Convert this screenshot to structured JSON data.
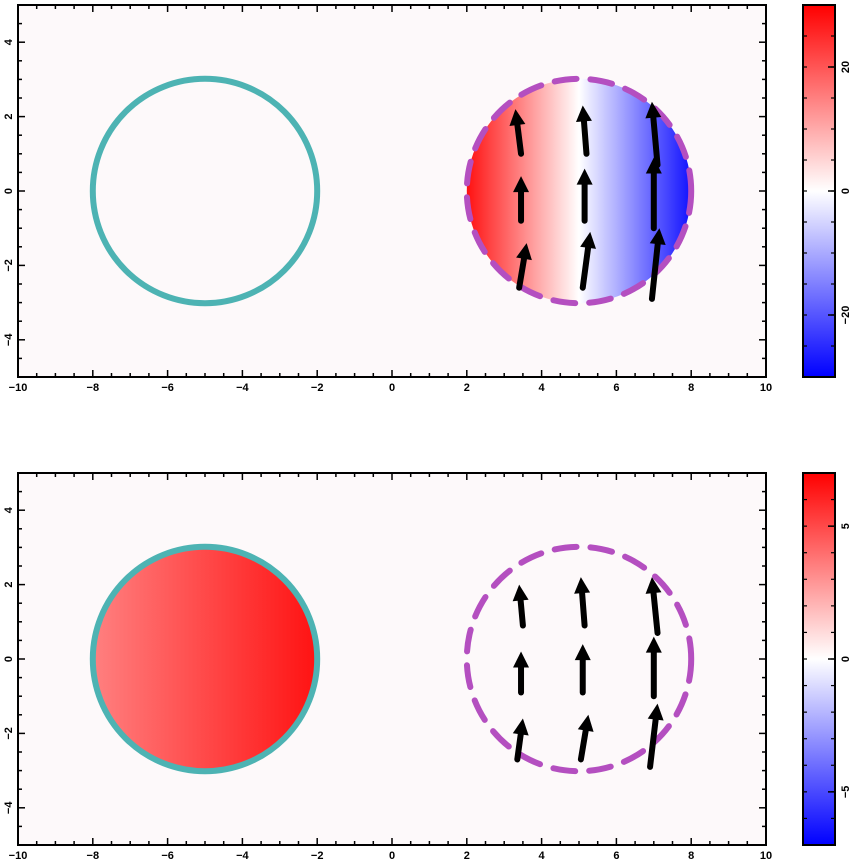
{
  "chart_data": [
    {
      "type": "heatmap",
      "panel": "top",
      "title": "",
      "xlabel": "",
      "ylabel": "",
      "xlim": [
        -10,
        10
      ],
      "ylim": [
        -5,
        5
      ],
      "x_ticks": [
        "−10",
        "−8",
        "−6",
        "−4",
        "−2",
        "0",
        "2",
        "4",
        "6",
        "8",
        "10"
      ],
      "y_ticks": [
        "−4",
        "−2",
        "0",
        "2",
        "4"
      ],
      "left_circle": {
        "cx": -5,
        "cy": 0,
        "r": 3,
        "style": "solid",
        "color": "#4db3b3",
        "filled": false
      },
      "right_circle": {
        "cx": 5,
        "cy": 0,
        "r": 3,
        "style": "dashed",
        "color": "#b44fc0",
        "filled": true,
        "field": {
          "kind": "diverging_x",
          "left_value": 28,
          "right_value": -28
        }
      },
      "arrows": [
        {
          "x": 3.4,
          "y": -2.6,
          "dx": 0.2,
          "dy": 1.2
        },
        {
          "x": 3.45,
          "y": -0.8,
          "dx": 0.0,
          "dy": 1.2
        },
        {
          "x": 3.45,
          "y": 1.0,
          "dx": -0.15,
          "dy": 1.2
        },
        {
          "x": 5.1,
          "y": -2.6,
          "dx": 0.2,
          "dy": 1.5
        },
        {
          "x": 5.15,
          "y": -0.8,
          "dx": 0.0,
          "dy": 1.4
        },
        {
          "x": 5.2,
          "y": 1.0,
          "dx": -0.1,
          "dy": 1.3
        },
        {
          "x": 6.95,
          "y": -2.9,
          "dx": 0.2,
          "dy": 1.9
        },
        {
          "x": 7.0,
          "y": -1.0,
          "dx": 0.0,
          "dy": 1.9
        },
        {
          "x": 7.1,
          "y": 0.7,
          "dx": -0.15,
          "dy": 1.7
        }
      ],
      "colorbar": {
        "min": -30,
        "max": 30,
        "ticks": [
          {
            "value": 20,
            "label": "20"
          },
          {
            "value": 0,
            "label": "0"
          },
          {
            "value": -20,
            "label": "−20"
          }
        ]
      }
    },
    {
      "type": "heatmap",
      "panel": "bottom",
      "title": "",
      "xlabel": "",
      "ylabel": "",
      "xlim": [
        -10,
        10
      ],
      "ylim": [
        -5,
        5
      ],
      "x_ticks": [
        "−10",
        "−8",
        "−6",
        "−4",
        "−2",
        "0",
        "2",
        "4",
        "6",
        "8",
        "10"
      ],
      "y_ticks": [
        "−4",
        "−2",
        "0",
        "2",
        "4"
      ],
      "left_circle": {
        "cx": -5,
        "cy": 0,
        "r": 3,
        "style": "solid",
        "color": "#4db3b3",
        "filled": true,
        "field": {
          "kind": "linear_x",
          "left_value": 3.5,
          "right_value": 6.5
        }
      },
      "right_circle": {
        "cx": 5,
        "cy": 0,
        "r": 3,
        "style": "dashed",
        "color": "#b44fc0",
        "filled": false
      },
      "arrows": [
        {
          "x": 3.35,
          "y": -2.7,
          "dx": 0.15,
          "dy": 1.1
        },
        {
          "x": 3.45,
          "y": -0.9,
          "dx": 0.0,
          "dy": 1.1
        },
        {
          "x": 3.5,
          "y": 0.9,
          "dx": -0.1,
          "dy": 1.1
        },
        {
          "x": 5.05,
          "y": -2.7,
          "dx": 0.2,
          "dy": 1.2
        },
        {
          "x": 5.1,
          "y": -0.9,
          "dx": 0.0,
          "dy": 1.3
        },
        {
          "x": 5.15,
          "y": 0.9,
          "dx": -0.1,
          "dy": 1.3
        },
        {
          "x": 6.9,
          "y": -2.9,
          "dx": 0.2,
          "dy": 1.7
        },
        {
          "x": 7.0,
          "y": -1.0,
          "dx": 0.0,
          "dy": 1.6
        },
        {
          "x": 7.1,
          "y": 0.7,
          "dx": -0.15,
          "dy": 1.5
        }
      ],
      "colorbar": {
        "min": -7,
        "max": 7,
        "ticks": [
          {
            "value": 5,
            "label": "5"
          },
          {
            "value": 0,
            "label": "0"
          },
          {
            "value": -5,
            "label": "−5"
          }
        ]
      }
    }
  ]
}
